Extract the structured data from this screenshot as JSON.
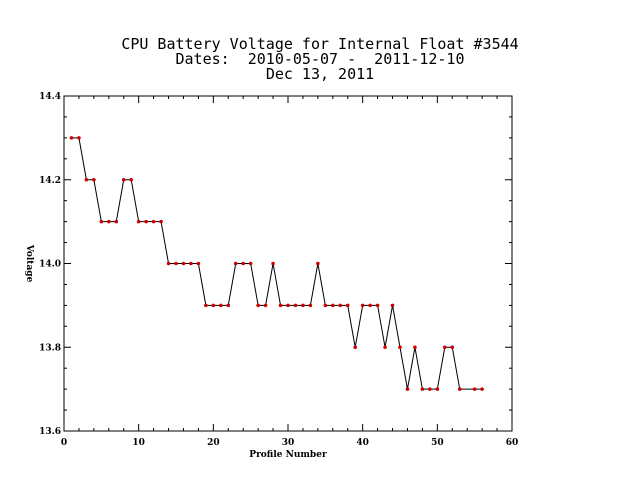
{
  "title_lines": [
    "CPU Battery Voltage for Internal Float #3544",
    "Dates:  2010-05-07 -  2011-12-10",
    "Dec 13, 2011"
  ],
  "chart_data": {
    "type": "line",
    "title": "CPU Battery Voltage for Internal Float #3544",
    "subtitle": "Dates:  2010-05-07 -  2011-12-10 / Dec 13, 2011",
    "xlabel": "Profile Number",
    "ylabel": "Voltage",
    "xlim": [
      0,
      60
    ],
    "ylim": [
      13.6,
      14.4
    ],
    "x_ticks": [
      "0",
      "10",
      "20",
      "30",
      "40",
      "50",
      "60"
    ],
    "y_ticks": [
      "13.6",
      "13.8",
      "14.0",
      "14.2",
      "14.4"
    ],
    "grid": false,
    "line_color": "#000000",
    "marker_color": "#cc0000",
    "x": [
      1,
      2,
      3,
      4,
      5,
      6,
      7,
      8,
      9,
      10,
      11,
      12,
      13,
      14,
      15,
      16,
      17,
      18,
      19,
      20,
      21,
      22,
      23,
      24,
      25,
      26,
      27,
      28,
      29,
      30,
      31,
      32,
      33,
      34,
      35,
      36,
      37,
      38,
      39,
      40,
      41,
      42,
      43,
      44,
      45,
      46,
      47,
      48,
      49,
      50,
      51,
      52,
      53,
      55,
      56
    ],
    "y": [
      14.3,
      14.3,
      14.2,
      14.2,
      14.1,
      14.1,
      14.1,
      14.2,
      14.2,
      14.1,
      14.1,
      14.1,
      14.1,
      14.0,
      14.0,
      14.0,
      14.0,
      14.0,
      13.9,
      13.9,
      13.9,
      13.9,
      14.0,
      14.0,
      14.0,
      13.9,
      13.9,
      14.0,
      13.9,
      13.9,
      13.9,
      13.9,
      13.9,
      14.0,
      13.9,
      13.9,
      13.9,
      13.9,
      13.8,
      13.9,
      13.9,
      13.9,
      13.8,
      13.9,
      13.8,
      13.7,
      13.8,
      13.7,
      13.7,
      13.7,
      13.8,
      13.8,
      13.7,
      13.7,
      13.7
    ]
  }
}
